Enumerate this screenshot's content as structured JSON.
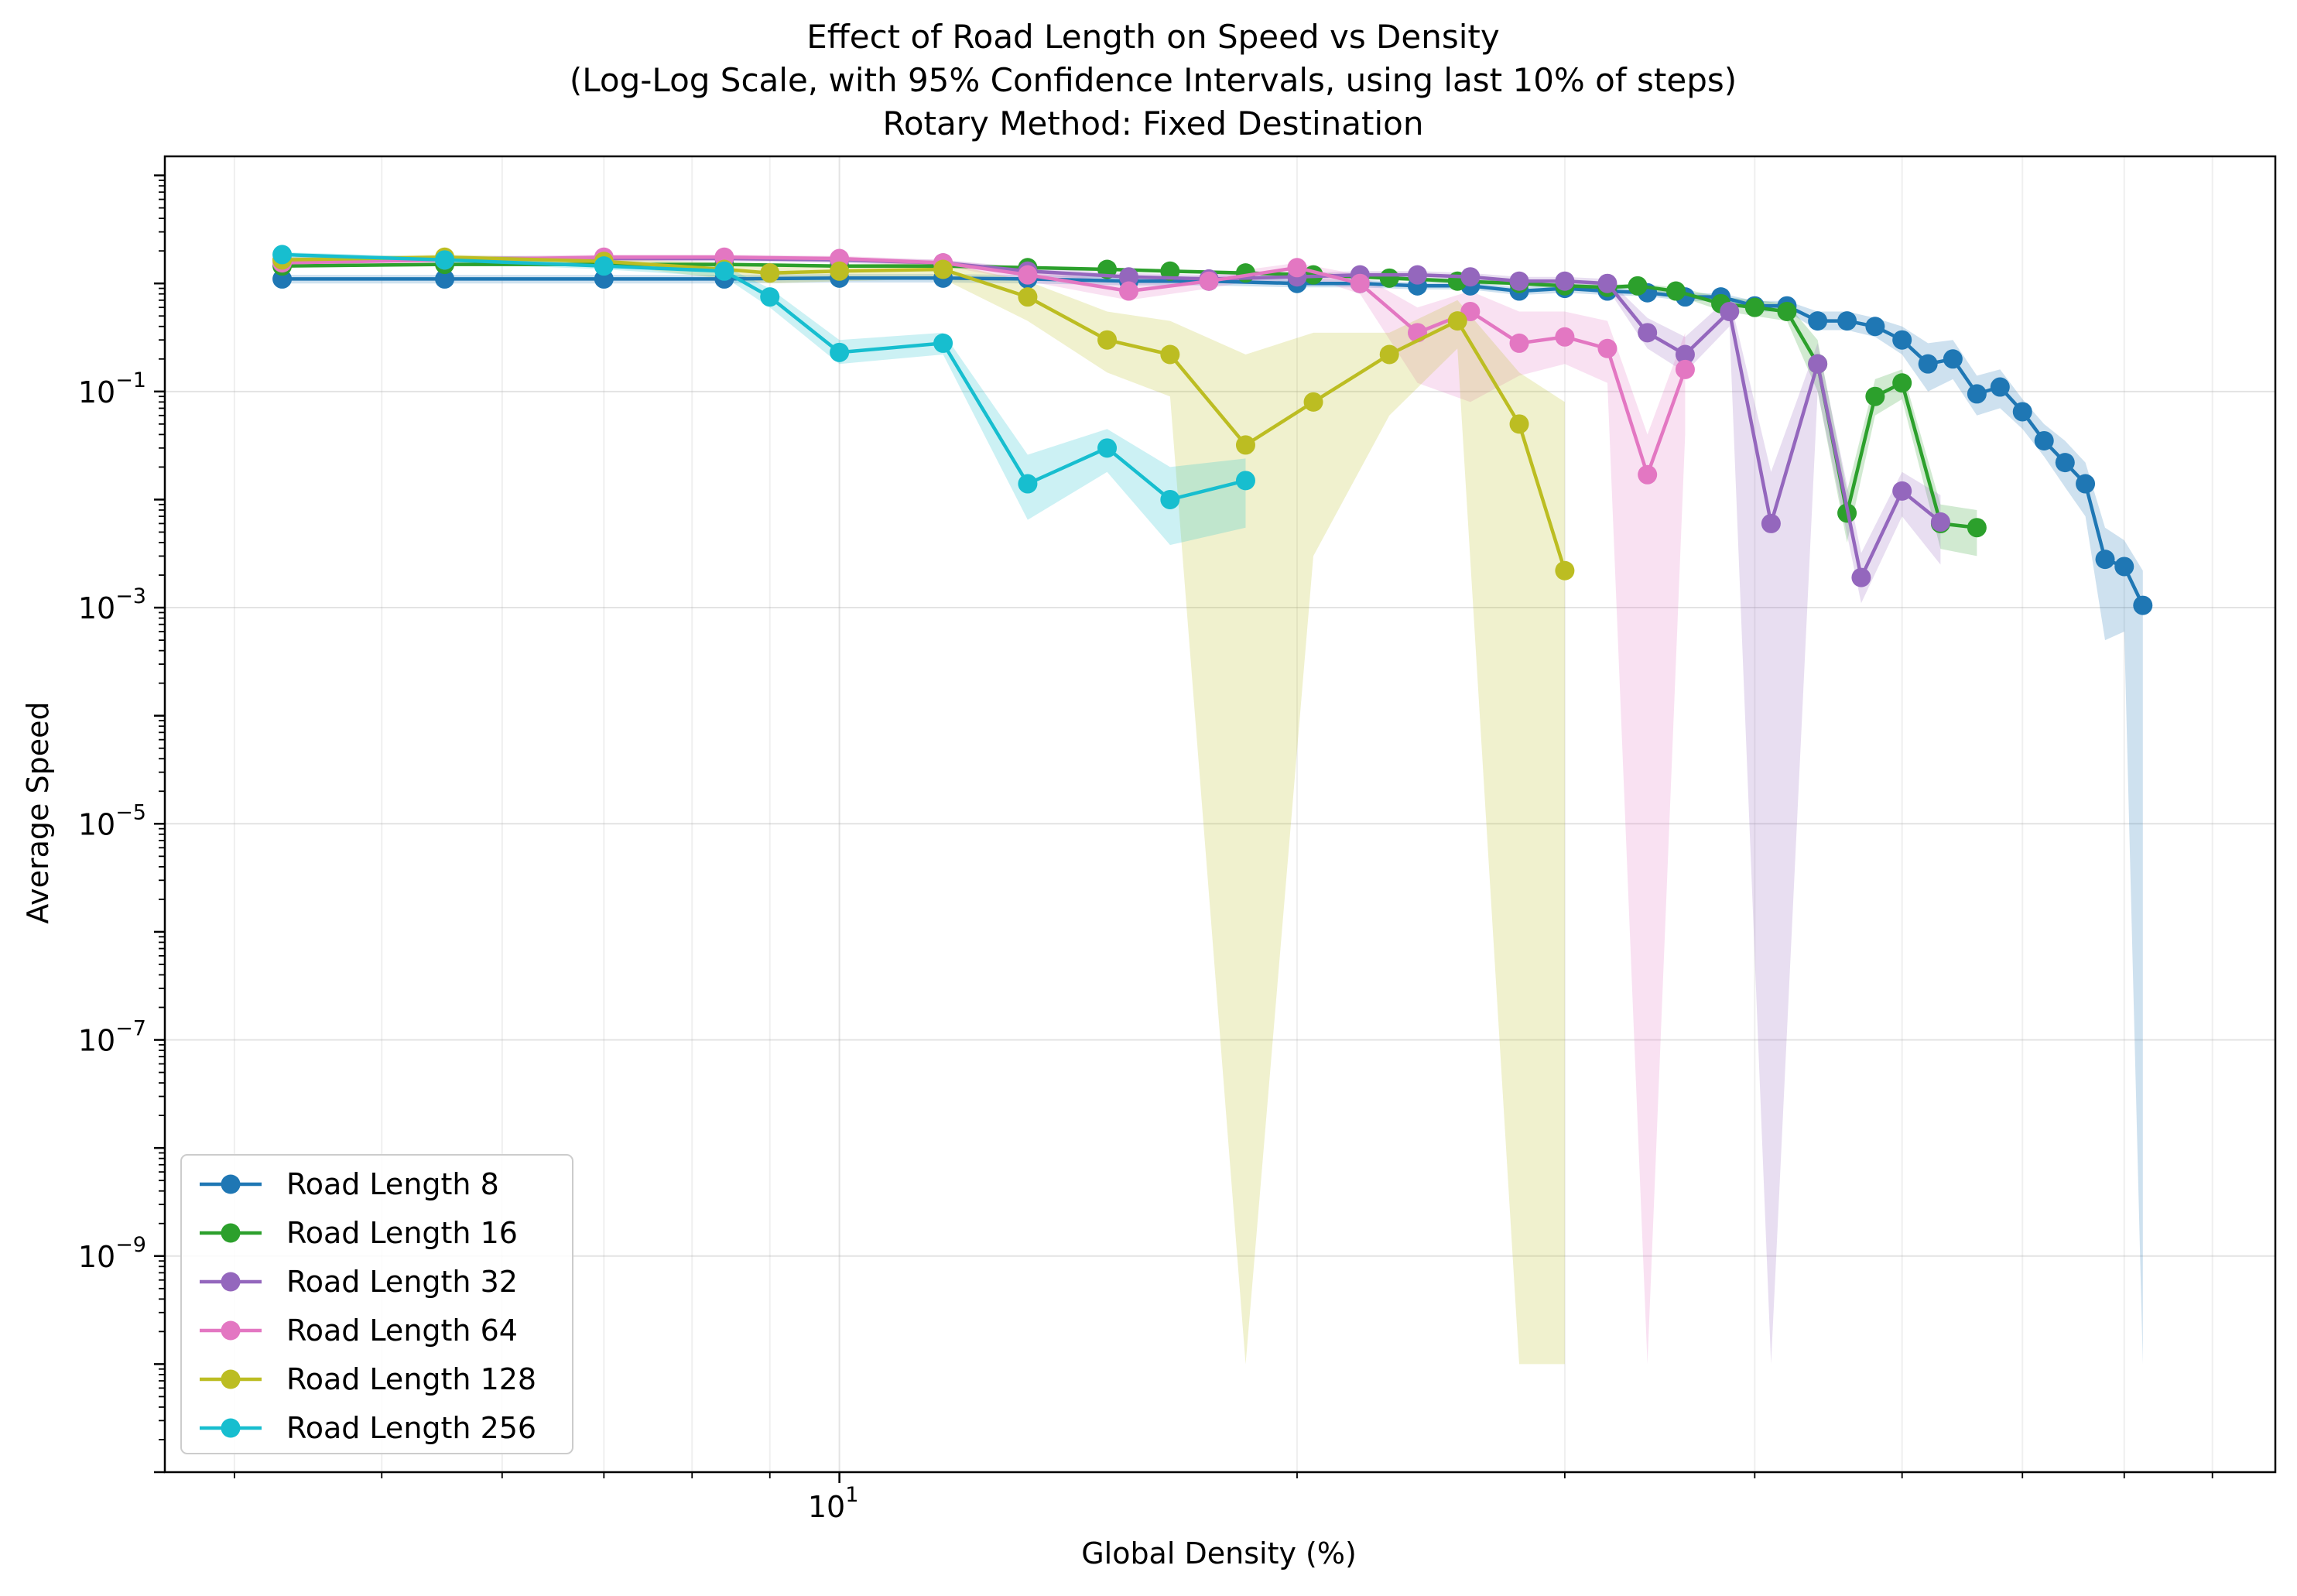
{
  "chart_data": {
    "type": "line",
    "title": [
      "Effect of Road Length on Speed vs Density",
      "(Log-Log Scale, with 95% Confidence Intervals, using last 10% of steps)",
      "Rotary Method: Fixed Destination"
    ],
    "xlabel": "Global Density (%)",
    "ylabel": "Average Speed",
    "x_scale": "log",
    "y_scale": "log",
    "xlim": [
      3.6,
      88
    ],
    "ylim": [
      1e-11,
      15
    ],
    "x_tick_labels": [
      {
        "value": 10,
        "mantissa": "10",
        "exp": "1"
      }
    ],
    "y_tick_labels": [
      {
        "value": 0.1,
        "mantissa": "10",
        "exp": "−1"
      },
      {
        "value": 0.001,
        "mantissa": "10",
        "exp": "−3"
      },
      {
        "value": 1e-05,
        "mantissa": "10",
        "exp": "−5"
      },
      {
        "value": 1e-07,
        "mantissa": "10",
        "exp": "−7"
      },
      {
        "value": 1e-09,
        "mantissa": "10",
        "exp": "−9"
      }
    ],
    "grid": true,
    "legend_position": "lower-left",
    "series": [
      {
        "name": "Road Length 8",
        "color": "#1f77b4",
        "points": [
          [
            4.3,
            1.1
          ],
          [
            5.5,
            1.1
          ],
          [
            7.0,
            1.1
          ],
          [
            8.4,
            1.1
          ],
          [
            10.0,
            1.12
          ],
          [
            11.7,
            1.12
          ],
          [
            13.3,
            1.1
          ],
          [
            15.5,
            1.05
          ],
          [
            17.5,
            1.05
          ],
          [
            20.0,
            1.0
          ],
          [
            22.0,
            1.0
          ],
          [
            24.0,
            0.95
          ],
          [
            26.0,
            0.95
          ],
          [
            28.0,
            0.85
          ],
          [
            30.0,
            0.9
          ],
          [
            32.0,
            0.85
          ],
          [
            34.0,
            0.82
          ],
          [
            36.0,
            0.75
          ],
          [
            38.0,
            0.75
          ],
          [
            40.0,
            0.62
          ],
          [
            42.0,
            0.62
          ],
          [
            44.0,
            0.45
          ],
          [
            46.0,
            0.45
          ],
          [
            48.0,
            0.4
          ],
          [
            50.0,
            0.3
          ],
          [
            52.0,
            0.18
          ],
          [
            54.0,
            0.2
          ],
          [
            56.0,
            0.095
          ],
          [
            58.0,
            0.11
          ],
          [
            60.0,
            0.065
          ],
          [
            62.0,
            0.035
          ],
          [
            64.0,
            0.022
          ],
          [
            66.0,
            0.014
          ],
          [
            68.0,
            0.0028
          ],
          [
            70.0,
            0.0024
          ],
          [
            72.0,
            0.00105
          ]
        ],
        "ci_low": [
          1.0,
          1.0,
          1.0,
          1.0,
          1.02,
          1.02,
          1.0,
          0.96,
          0.96,
          0.92,
          0.92,
          0.88,
          0.88,
          0.78,
          0.82,
          0.78,
          0.76,
          0.69,
          0.69,
          0.55,
          0.55,
          0.37,
          0.37,
          0.32,
          0.22,
          0.1,
          0.13,
          0.06,
          0.07,
          0.045,
          0.025,
          0.013,
          0.007,
          0.0005,
          0.0006,
          1e-10
        ],
        "ci_high": [
          1.2,
          1.2,
          1.2,
          1.2,
          1.22,
          1.22,
          1.2,
          1.14,
          1.14,
          1.08,
          1.08,
          1.02,
          1.02,
          0.92,
          0.98,
          0.92,
          0.88,
          0.81,
          0.81,
          0.69,
          0.69,
          0.55,
          0.55,
          0.48,
          0.4,
          0.28,
          0.3,
          0.14,
          0.16,
          0.085,
          0.05,
          0.035,
          0.022,
          0.0055,
          0.0042,
          0.0022
        ]
      },
      {
        "name": "Road Length 16",
        "color": "#2ca02c",
        "points": [
          [
            4.3,
            1.45
          ],
          [
            5.5,
            1.5
          ],
          [
            7.0,
            1.5
          ],
          [
            8.4,
            1.5
          ],
          [
            10.0,
            1.45
          ],
          [
            11.7,
            1.45
          ],
          [
            13.3,
            1.4
          ],
          [
            15.0,
            1.35
          ],
          [
            16.5,
            1.3
          ],
          [
            18.5,
            1.25
          ],
          [
            20.5,
            1.2
          ],
          [
            23.0,
            1.12
          ],
          [
            25.5,
            1.05
          ],
          [
            28.0,
            1.0
          ],
          [
            30.0,
            0.95
          ],
          [
            32.0,
            0.92
          ],
          [
            33.5,
            0.95
          ],
          [
            35.5,
            0.85
          ],
          [
            38.0,
            0.65
          ],
          [
            40.0,
            0.6
          ],
          [
            42.0,
            0.55
          ],
          [
            44.0,
            0.18
          ],
          [
            46.0,
            0.0075
          ],
          [
            48.0,
            0.09
          ],
          [
            50.0,
            0.12
          ],
          [
            53.0,
            0.006
          ],
          [
            56.0,
            0.0055
          ]
        ],
        "ci_low": [
          1.4,
          1.45,
          1.45,
          1.45,
          1.4,
          1.4,
          1.35,
          1.3,
          1.25,
          1.2,
          1.15,
          1.07,
          1.0,
          0.95,
          0.9,
          0.87,
          0.9,
          0.78,
          0.56,
          0.5,
          0.45,
          0.1,
          0.004,
          0.06,
          0.085,
          0.0035,
          0.003
        ],
        "ci_high": [
          1.5,
          1.55,
          1.55,
          1.55,
          1.5,
          1.5,
          1.45,
          1.4,
          1.35,
          1.3,
          1.25,
          1.17,
          1.1,
          1.05,
          1.0,
          0.97,
          1.0,
          0.92,
          0.75,
          0.7,
          0.65,
          0.3,
          0.012,
          0.13,
          0.16,
          0.009,
          0.008
        ]
      },
      {
        "name": "Road Length 32",
        "color": "#9467bd",
        "points": [
          [
            4.3,
            1.65
          ],
          [
            5.5,
            1.7
          ],
          [
            7.0,
            1.7
          ],
          [
            8.4,
            1.7
          ],
          [
            10.0,
            1.65
          ],
          [
            11.7,
            1.55
          ],
          [
            13.3,
            1.3
          ],
          [
            15.5,
            1.15
          ],
          [
            17.5,
            1.1
          ],
          [
            20.0,
            1.15
          ],
          [
            22.0,
            1.2
          ],
          [
            24.0,
            1.2
          ],
          [
            26.0,
            1.15
          ],
          [
            28.0,
            1.05
          ],
          [
            30.0,
            1.05
          ],
          [
            32.0,
            1.0
          ],
          [
            34.0,
            0.35
          ],
          [
            36.0,
            0.22
          ],
          [
            38.5,
            0.55
          ],
          [
            41.0,
            0.006
          ],
          [
            44.0,
            0.18
          ],
          [
            47.0,
            0.0019
          ],
          [
            50.0,
            0.012
          ],
          [
            53.0,
            0.0062
          ]
        ],
        "ci_low": [
          1.55,
          1.6,
          1.6,
          1.6,
          1.55,
          1.45,
          1.2,
          1.05,
          1.0,
          1.05,
          1.1,
          1.1,
          1.05,
          0.95,
          0.95,
          0.9,
          0.25,
          0.15,
          0.4,
          1e-10,
          0.1,
          0.0011,
          0.007,
          0.0025
        ],
        "ci_high": [
          1.75,
          1.8,
          1.8,
          1.8,
          1.75,
          1.65,
          1.4,
          1.25,
          1.2,
          1.25,
          1.3,
          1.3,
          1.25,
          1.15,
          1.15,
          1.1,
          0.48,
          0.32,
          0.75,
          0.018,
          0.28,
          0.0032,
          0.018,
          0.011
        ]
      },
      {
        "name": "Road Length 64",
        "color": "#e377c2",
        "points": [
          [
            4.3,
            1.55
          ],
          [
            5.5,
            1.65
          ],
          [
            7.0,
            1.75
          ],
          [
            8.4,
            1.75
          ],
          [
            10.0,
            1.7
          ],
          [
            11.7,
            1.55
          ],
          [
            13.3,
            1.2
          ],
          [
            15.5,
            0.85
          ],
          [
            17.5,
            1.05
          ],
          [
            20.0,
            1.4
          ],
          [
            22.0,
            1.0
          ],
          [
            24.0,
            0.35
          ],
          [
            26.0,
            0.55
          ],
          [
            28.0,
            0.28
          ],
          [
            30.0,
            0.32
          ],
          [
            32.0,
            0.25
          ],
          [
            34.0,
            0.017
          ],
          [
            36.0,
            0.16
          ]
        ],
        "ci_low": [
          1.45,
          1.55,
          1.65,
          1.65,
          1.6,
          1.45,
          1.05,
          0.7,
          0.9,
          1.25,
          0.8,
          0.12,
          0.08,
          0.14,
          0.18,
          0.12,
          1e-10,
          0.04
        ],
        "ci_high": [
          1.65,
          1.75,
          1.85,
          1.85,
          1.8,
          1.65,
          1.35,
          1.0,
          1.2,
          1.55,
          1.2,
          0.6,
          0.85,
          0.55,
          0.55,
          0.45,
          0.04,
          0.35
        ]
      },
      {
        "name": "Road Length 128",
        "color": "#bcbd22",
        "points": [
          [
            4.3,
            1.65
          ],
          [
            5.5,
            1.75
          ],
          [
            7.0,
            1.6
          ],
          [
            8.4,
            1.35
          ],
          [
            9.0,
            1.25
          ],
          [
            10.0,
            1.3
          ],
          [
            11.7,
            1.35
          ],
          [
            13.3,
            0.75
          ],
          [
            15.0,
            0.3
          ],
          [
            16.5,
            0.22
          ],
          [
            18.5,
            0.032
          ],
          [
            20.5,
            0.08
          ],
          [
            23.0,
            0.22
          ],
          [
            25.5,
            0.45
          ],
          [
            28.0,
            0.05
          ],
          [
            30.0,
            0.0022
          ]
        ],
        "ci_low": [
          1.55,
          1.65,
          1.5,
          1.1,
          1.0,
          1.05,
          1.1,
          0.45,
          0.15,
          0.09,
          1e-10,
          0.003,
          0.06,
          0.25,
          1e-10,
          1e-10
        ],
        "ci_high": [
          1.75,
          1.85,
          1.7,
          1.55,
          1.45,
          1.5,
          1.55,
          1.05,
          0.55,
          0.45,
          0.22,
          0.35,
          0.35,
          0.7,
          0.15,
          0.08
        ]
      },
      {
        "name": "Road Length 256",
        "color": "#17becf",
        "points": [
          [
            4.3,
            1.85
          ],
          [
            5.5,
            1.65
          ],
          [
            7.0,
            1.45
          ],
          [
            8.4,
            1.3
          ],
          [
            9.0,
            0.75
          ],
          [
            10.0,
            0.23
          ],
          [
            11.7,
            0.28
          ],
          [
            13.3,
            0.014
          ],
          [
            15.0,
            0.03
          ],
          [
            16.5,
            0.01
          ],
          [
            18.5,
            0.015
          ]
        ],
        "ci_low": [
          1.75,
          1.55,
          1.35,
          1.15,
          0.6,
          0.18,
          0.22,
          0.0065,
          0.018,
          0.0038,
          0.0055
        ],
        "ci_high": [
          1.95,
          1.75,
          1.55,
          1.45,
          0.9,
          0.3,
          0.35,
          0.026,
          0.045,
          0.02,
          0.024
        ]
      }
    ]
  }
}
